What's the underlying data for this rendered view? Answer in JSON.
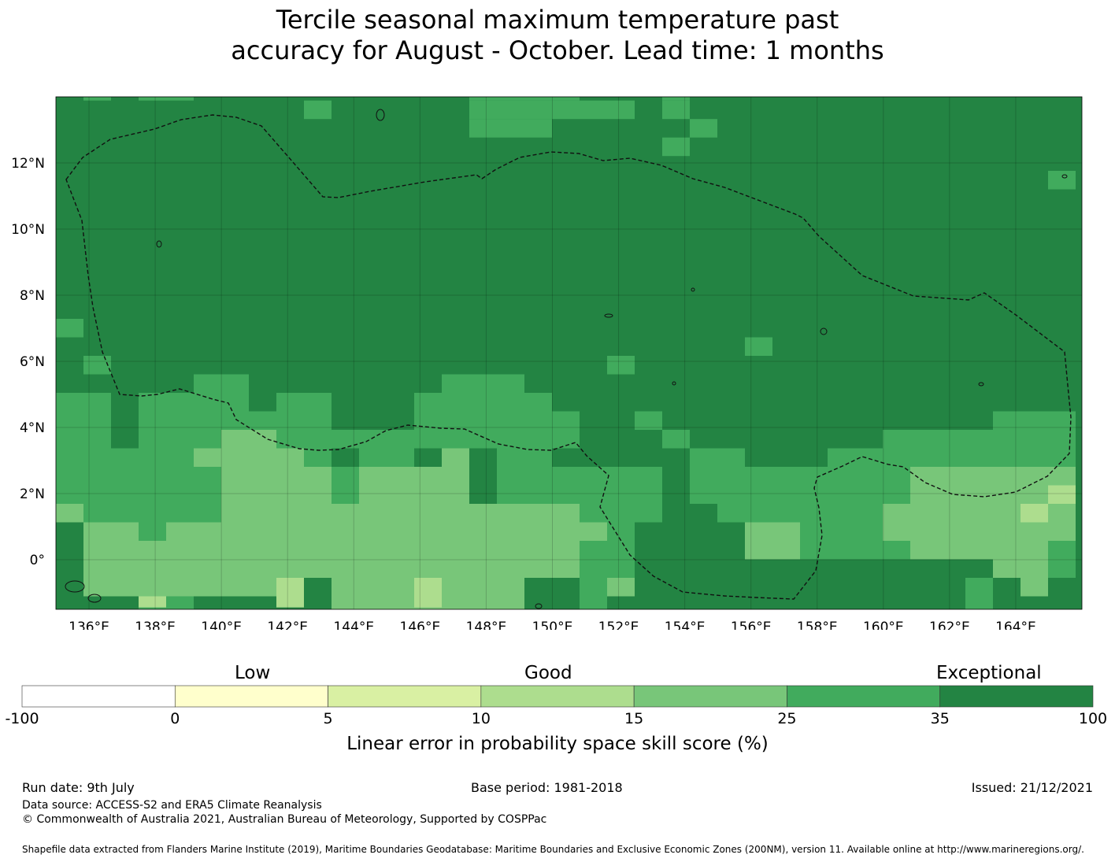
{
  "title": {
    "line1": "Tercile seasonal maximum temperature past",
    "line2": "accuracy for August - October. Lead time: 1 months"
  },
  "map": {
    "lon_range": [
      135.0,
      166.0
    ],
    "lat_range": [
      -1.5,
      14.0
    ],
    "lon_ticks": [
      "136°E",
      "138°E",
      "140°E",
      "142°E",
      "144°E",
      "146°E",
      "148°E",
      "150°E",
      "152°E",
      "154°E",
      "156°E",
      "158°E",
      "160°E",
      "162°E",
      "164°E"
    ],
    "lat_ticks": [
      "12°N",
      "10°N",
      "8°N",
      "6°N",
      "4°N",
      "2°N",
      "0°"
    ],
    "grid": true,
    "boundary": "dashed EEZ outline"
  },
  "colorbar": {
    "categories": {
      "low": "Low",
      "good": "Good",
      "exceptional": "Exceptional"
    },
    "ticks": [
      "-100",
      "0",
      "5",
      "10",
      "15",
      "25",
      "35",
      "100"
    ],
    "colors": [
      "#ffffff",
      "#ffffcc",
      "#d9f0a3",
      "#addd8e",
      "#78c679",
      "#41ab5d",
      "#238443"
    ],
    "label": "Linear error in probability space skill score (%)"
  },
  "footer": {
    "run_date": "Run date: 9th July",
    "base_period": "Base period: 1981-2018",
    "issued": "Issued: 21/12/2021",
    "data_source": "Data source: ACCESS-S2 and ERA5 Climate Reanalysis",
    "copyright": "© Commonwealth of Australia 2021, Australian Bureau of Meteorology, Supported by COSPPac",
    "shapefile": "Shapefile data extracted from Flanders Marine Institute (2019), Maritime Boundaries Geodatabase: Maritime Boundaries and Exclusive Economic Zones (200NM), version 11. Available online at http://www.marineregions.org/."
  }
}
